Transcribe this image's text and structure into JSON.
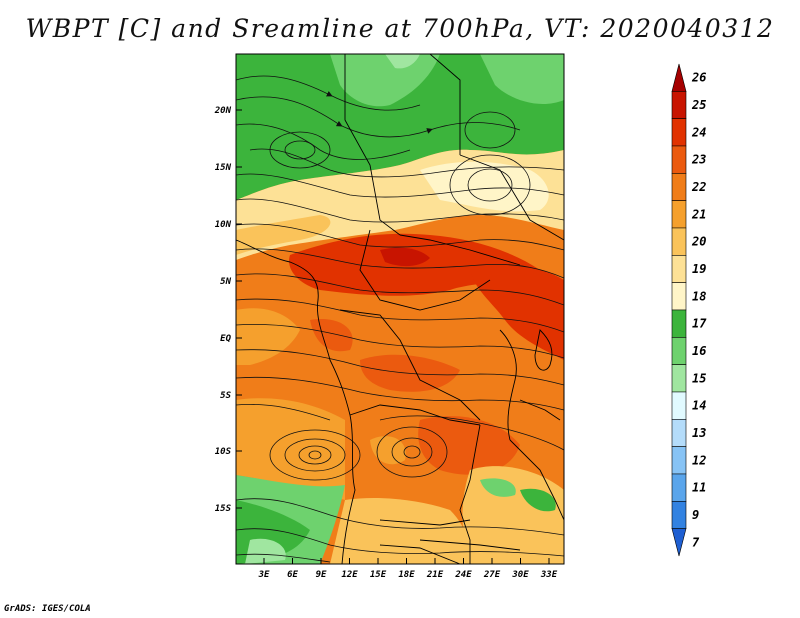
{
  "title": "WBPT [C] and Sreamline at 700hPa, VT: 2020040312",
  "credit": "GrADS: IGES/COLA",
  "map": {
    "lat_labels": [
      "20N",
      "15N",
      "10N",
      "5N",
      "EQ",
      "5S",
      "10S",
      "15S"
    ],
    "lon_labels": [
      "3E",
      "6E",
      "9E",
      "12E",
      "15E",
      "18E",
      "21E",
      "24E",
      "27E",
      "30E",
      "33E"
    ]
  },
  "colorbar": {
    "labels": [
      "26",
      "25",
      "24",
      "23",
      "22",
      "21",
      "20",
      "19",
      "18",
      "17",
      "16",
      "15",
      "14",
      "13",
      "12",
      "11",
      "9",
      "7"
    ],
    "colors": [
      "#a50000",
      "#c81400",
      "#e13200",
      "#eb5a0f",
      "#f07d19",
      "#f5a02d",
      "#fac35a",
      "#fde196",
      "#fff5c8",
      "#3cb43c",
      "#6ed26e",
      "#a0e6a0",
      "#e1faff",
      "#b4dcfa",
      "#87c3f5",
      "#5aa5eb",
      "#3282e1",
      "#1e5fd2"
    ]
  }
}
